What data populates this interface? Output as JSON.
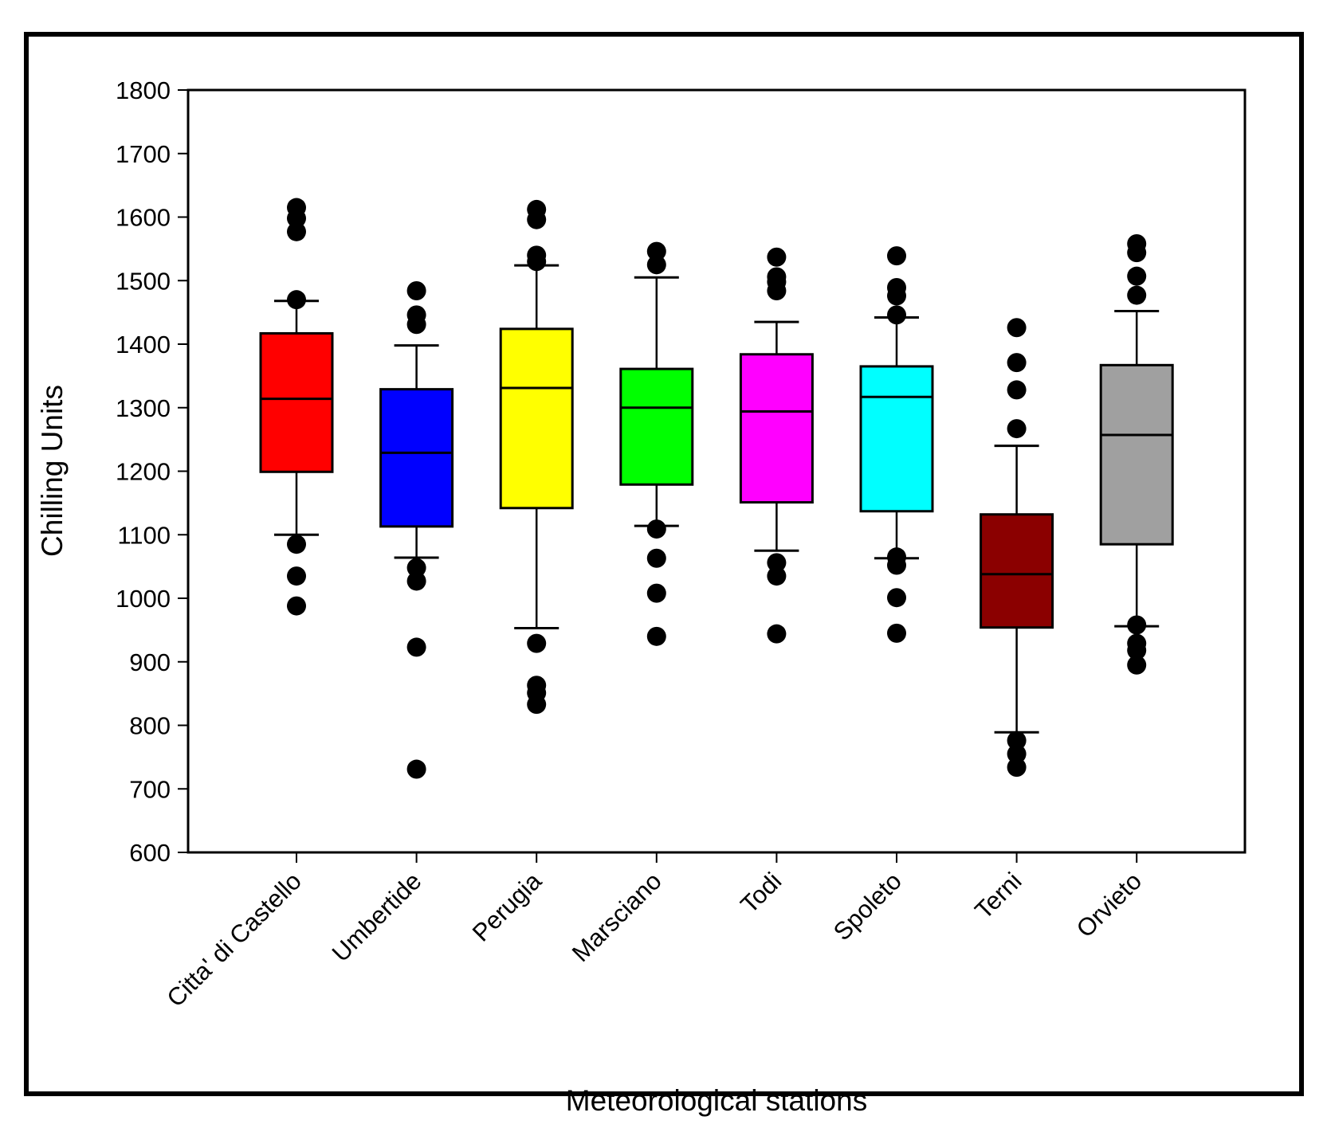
{
  "chart_data": {
    "type": "boxplot",
    "title": "",
    "xlabel": "Meteorological stations",
    "ylabel": "Chilling Units",
    "ylim": [
      600,
      1800
    ],
    "yticks": [
      600,
      700,
      800,
      900,
      1000,
      1100,
      1200,
      1300,
      1400,
      1500,
      1600,
      1700,
      1800
    ],
    "grid": false,
    "categories": [
      "Citta' di Castello",
      "Umbertide",
      "Perugia",
      "Marsciano",
      "Todi",
      "Spoleto",
      "Terni",
      "Orvieto"
    ],
    "boxes": [
      {
        "name": "Citta' di Castello",
        "color": "#ff0000",
        "whisker_low": 1100,
        "q1": 1199,
        "median": 1314,
        "q3": 1417,
        "whisker_high": 1468,
        "outliers": [
          1615,
          1598,
          1577,
          1470,
          1085,
          1035,
          988
        ]
      },
      {
        "name": "Umbertide",
        "color": "#0000ff",
        "whisker_low": 1064,
        "q1": 1113,
        "median": 1229,
        "q3": 1329,
        "whisker_high": 1398,
        "outliers": [
          1484,
          1446,
          1431,
          1048,
          1027,
          923,
          731
        ]
      },
      {
        "name": "Perugia",
        "color": "#ffff00",
        "whisker_low": 953,
        "q1": 1142,
        "median": 1331,
        "q3": 1424,
        "whisker_high": 1524,
        "outliers": [
          1612,
          1596,
          1540,
          1530,
          929,
          863,
          851,
          833
        ]
      },
      {
        "name": "Marsciano",
        "color": "#00ff00",
        "whisker_low": 1114,
        "q1": 1179,
        "median": 1300,
        "q3": 1361,
        "whisker_high": 1505,
        "outliers": [
          1546,
          1525,
          1109,
          1063,
          1008,
          940
        ]
      },
      {
        "name": "Todi",
        "color": "#ff00ff",
        "whisker_low": 1075,
        "q1": 1151,
        "median": 1294,
        "q3": 1384,
        "whisker_high": 1435,
        "outliers": [
          1537,
          1506,
          1498,
          1484,
          1056,
          1035,
          944
        ]
      },
      {
        "name": "Spoleto",
        "color": "#00ffff",
        "whisker_low": 1063,
        "q1": 1137,
        "median": 1317,
        "q3": 1365,
        "whisker_high": 1442,
        "outliers": [
          1539,
          1489,
          1476,
          1446,
          1065,
          1052,
          1001,
          945
        ]
      },
      {
        "name": "Terni",
        "color": "#8b0000",
        "whisker_low": 789,
        "q1": 954,
        "median": 1038,
        "q3": 1132,
        "whisker_high": 1240,
        "outliers": [
          1426,
          1371,
          1328,
          1267,
          776,
          755,
          734
        ]
      },
      {
        "name": "Orvieto",
        "color": "#a0a0a0",
        "whisker_low": 956,
        "q1": 1085,
        "median": 1257,
        "q3": 1367,
        "whisker_high": 1452,
        "outliers": [
          1558,
          1544,
          1507,
          1477,
          958,
          929,
          918,
          895
        ]
      }
    ]
  }
}
